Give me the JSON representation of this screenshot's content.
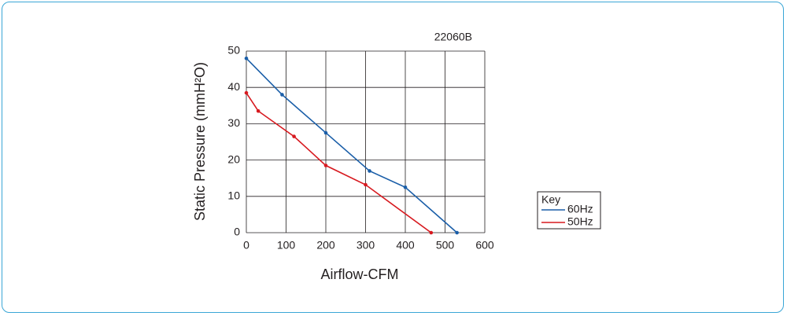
{
  "chart_data": {
    "type": "line",
    "title": "22060B",
    "x_label": "Airflow-CFM",
    "y_label": "Static Pressure (mmH²O)",
    "legend_title": "Key",
    "xlim": [
      0,
      600
    ],
    "xticks": [
      0,
      100,
      200,
      300,
      400,
      500,
      600
    ],
    "ylim": [
      0,
      50
    ],
    "yticks": [
      0,
      10,
      20,
      30,
      40,
      50
    ],
    "grid": true,
    "series": [
      {
        "name": "60Hz",
        "color": "#1a5ea8",
        "x": [
          0,
          90,
          200,
          310,
          400,
          530
        ],
        "values": [
          48,
          38,
          27.5,
          17,
          12.5,
          0
        ]
      },
      {
        "name": "50Hz",
        "color": "#d7191f",
        "x": [
          0,
          30,
          120,
          200,
          300,
          465
        ],
        "values": [
          38.5,
          33.5,
          26.5,
          18.5,
          13.2,
          0
        ]
      }
    ]
  }
}
